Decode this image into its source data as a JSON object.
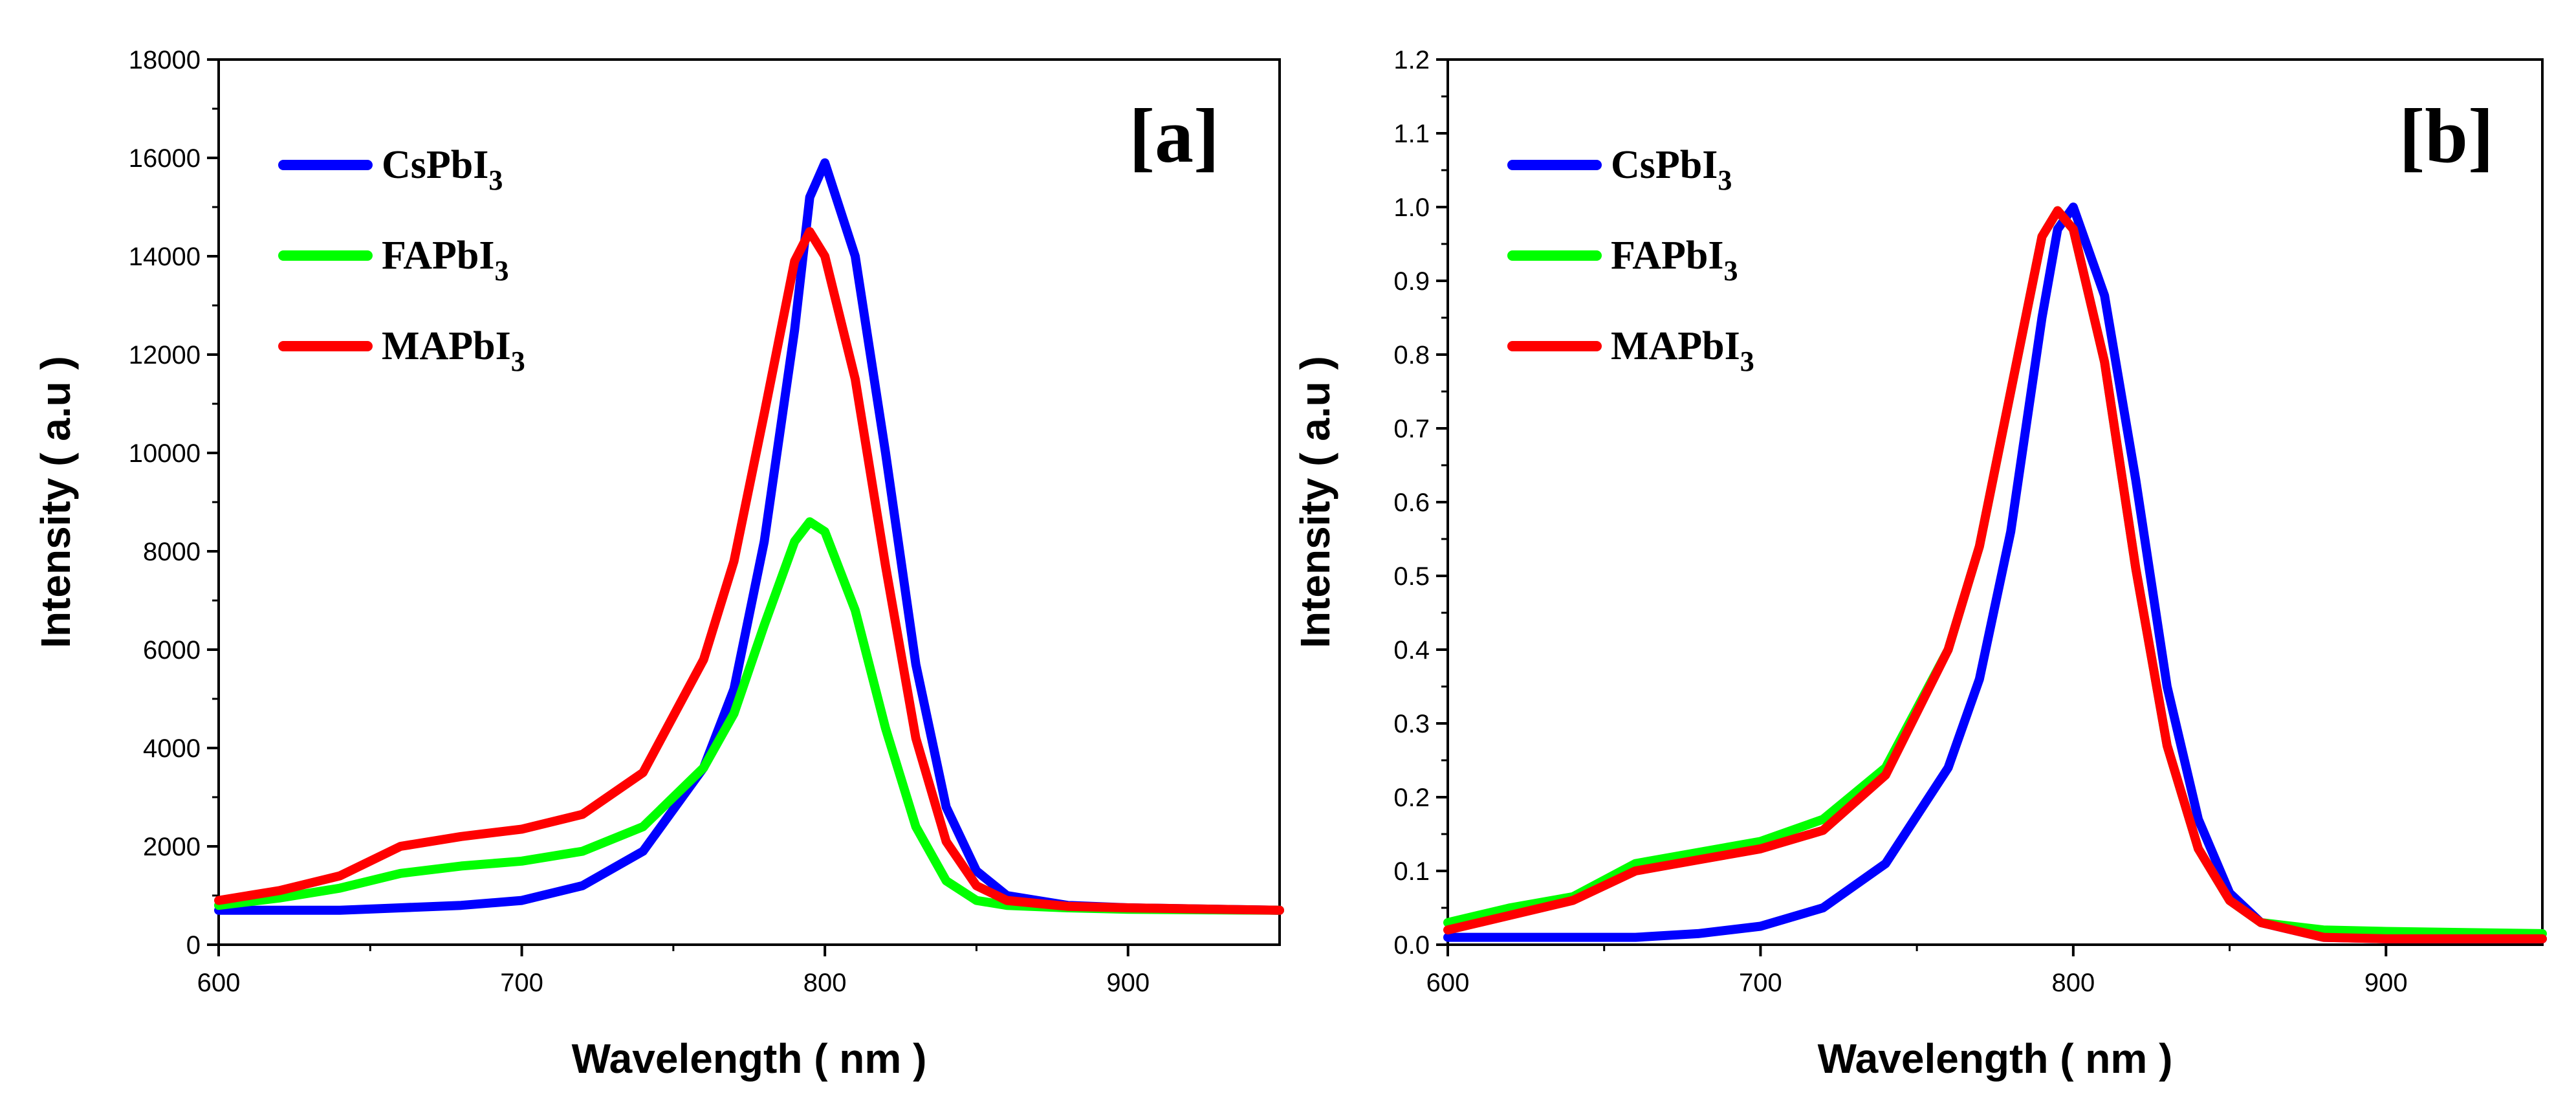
{
  "chart_data": [
    {
      "type": "line",
      "panel_label": "[a]",
      "xlabel": "Wavelength ( nm )",
      "ylabel": "Intensity ( a.u )",
      "xlim": [
        600,
        950
      ],
      "ylim": [
        0,
        18000
      ],
      "x_ticks": [
        600,
        700,
        800,
        900
      ],
      "x_tick_labels": [
        "600",
        "700",
        "800",
        "900"
      ],
      "y_ticks": [
        0,
        2000,
        4000,
        6000,
        8000,
        10000,
        12000,
        14000,
        16000,
        18000
      ],
      "y_tick_labels": [
        "0",
        "2000",
        "4000",
        "6000",
        "8000",
        "10000",
        "12000",
        "14000",
        "16000",
        "18000"
      ],
      "legend_position": "top-left",
      "legend": [
        {
          "base": "CsPbI",
          "sub": "3",
          "color": "#0000ff"
        },
        {
          "base": "FAPbI",
          "sub": "3",
          "color": "#00ff00"
        },
        {
          "base": "MAPbI",
          "sub": "3",
          "color": "#ff0000"
        }
      ],
      "x": [
        600,
        620,
        640,
        660,
        680,
        700,
        720,
        740,
        760,
        770,
        780,
        790,
        795,
        800,
        810,
        820,
        830,
        840,
        850,
        860,
        880,
        900,
        950
      ],
      "series": [
        {
          "name": "CsPbI3",
          "color": "#0000ff",
          "values": [
            700,
            700,
            700,
            750,
            800,
            900,
            1200,
            1900,
            3600,
            5200,
            8200,
            12500,
            15200,
            15900,
            14000,
            10000,
            5700,
            2800,
            1500,
            1000,
            800,
            750,
            700
          ]
        },
        {
          "name": "FAPbI3",
          "color": "#00ff00",
          "values": [
            800,
            950,
            1150,
            1450,
            1600,
            1700,
            1900,
            2400,
            3600,
            4700,
            6500,
            8200,
            8600,
            8400,
            6800,
            4400,
            2400,
            1300,
            900,
            800,
            750,
            720,
            700
          ]
        },
        {
          "name": "MAPbI3",
          "color": "#ff0000",
          "values": [
            900,
            1100,
            1400,
            2000,
            2200,
            2350,
            2650,
            3500,
            5800,
            7800,
            10800,
            13900,
            14500,
            14000,
            11500,
            7700,
            4200,
            2100,
            1200,
            900,
            780,
            750,
            700
          ]
        }
      ]
    },
    {
      "type": "line",
      "panel_label": "[b]",
      "xlabel": "Wavelength ( nm )",
      "ylabel": "Intensity ( a.u )",
      "xlim": [
        600,
        950
      ],
      "ylim": [
        0,
        1.2
      ],
      "x_ticks": [
        600,
        700,
        800,
        900
      ],
      "x_tick_labels": [
        "600",
        "700",
        "800",
        "900"
      ],
      "y_ticks": [
        0,
        0.1,
        0.2,
        0.3,
        0.4,
        0.5,
        0.6,
        0.7,
        0.8,
        0.9,
        1.0,
        1.1,
        1.2
      ],
      "y_tick_labels": [
        "0.0",
        "0.1",
        "0.2",
        "0.3",
        "0.4",
        "0.5",
        "0.6",
        "0.7",
        "0.8",
        "0.9",
        "1.0",
        "1.1",
        "1.2"
      ],
      "legend_position": "top-left",
      "legend": [
        {
          "base": "CsPbI",
          "sub": "3",
          "color": "#0000ff"
        },
        {
          "base": "FAPbI",
          "sub": "3",
          "color": "#00ff00"
        },
        {
          "base": "MAPbI",
          "sub": "3",
          "color": "#ff0000"
        }
      ],
      "x": [
        600,
        620,
        640,
        660,
        680,
        700,
        720,
        740,
        760,
        770,
        780,
        790,
        795,
        800,
        810,
        820,
        830,
        840,
        850,
        860,
        880,
        900,
        950
      ],
      "series": [
        {
          "name": "CsPbI3",
          "color": "#0000ff",
          "values": [
            0.01,
            0.01,
            0.01,
            0.01,
            0.015,
            0.025,
            0.05,
            0.11,
            0.24,
            0.36,
            0.56,
            0.85,
            0.97,
            1.0,
            0.88,
            0.63,
            0.35,
            0.17,
            0.07,
            0.03,
            0.01,
            0.008,
            0.008
          ]
        },
        {
          "name": "FAPbI3",
          "color": "#00ff00",
          "values": [
            0.03,
            0.05,
            0.065,
            0.11,
            0.125,
            0.14,
            0.17,
            0.24,
            0.4,
            0.54,
            0.75,
            0.96,
            0.995,
            0.97,
            0.79,
            0.51,
            0.27,
            0.13,
            0.06,
            0.03,
            0.02,
            0.018,
            0.015
          ]
        },
        {
          "name": "MAPbI3",
          "color": "#ff0000",
          "values": [
            0.02,
            0.04,
            0.06,
            0.1,
            0.115,
            0.13,
            0.155,
            0.23,
            0.4,
            0.54,
            0.75,
            0.96,
            0.995,
            0.97,
            0.79,
            0.51,
            0.27,
            0.13,
            0.06,
            0.03,
            0.01,
            0.008,
            0.008
          ]
        }
      ]
    }
  ]
}
